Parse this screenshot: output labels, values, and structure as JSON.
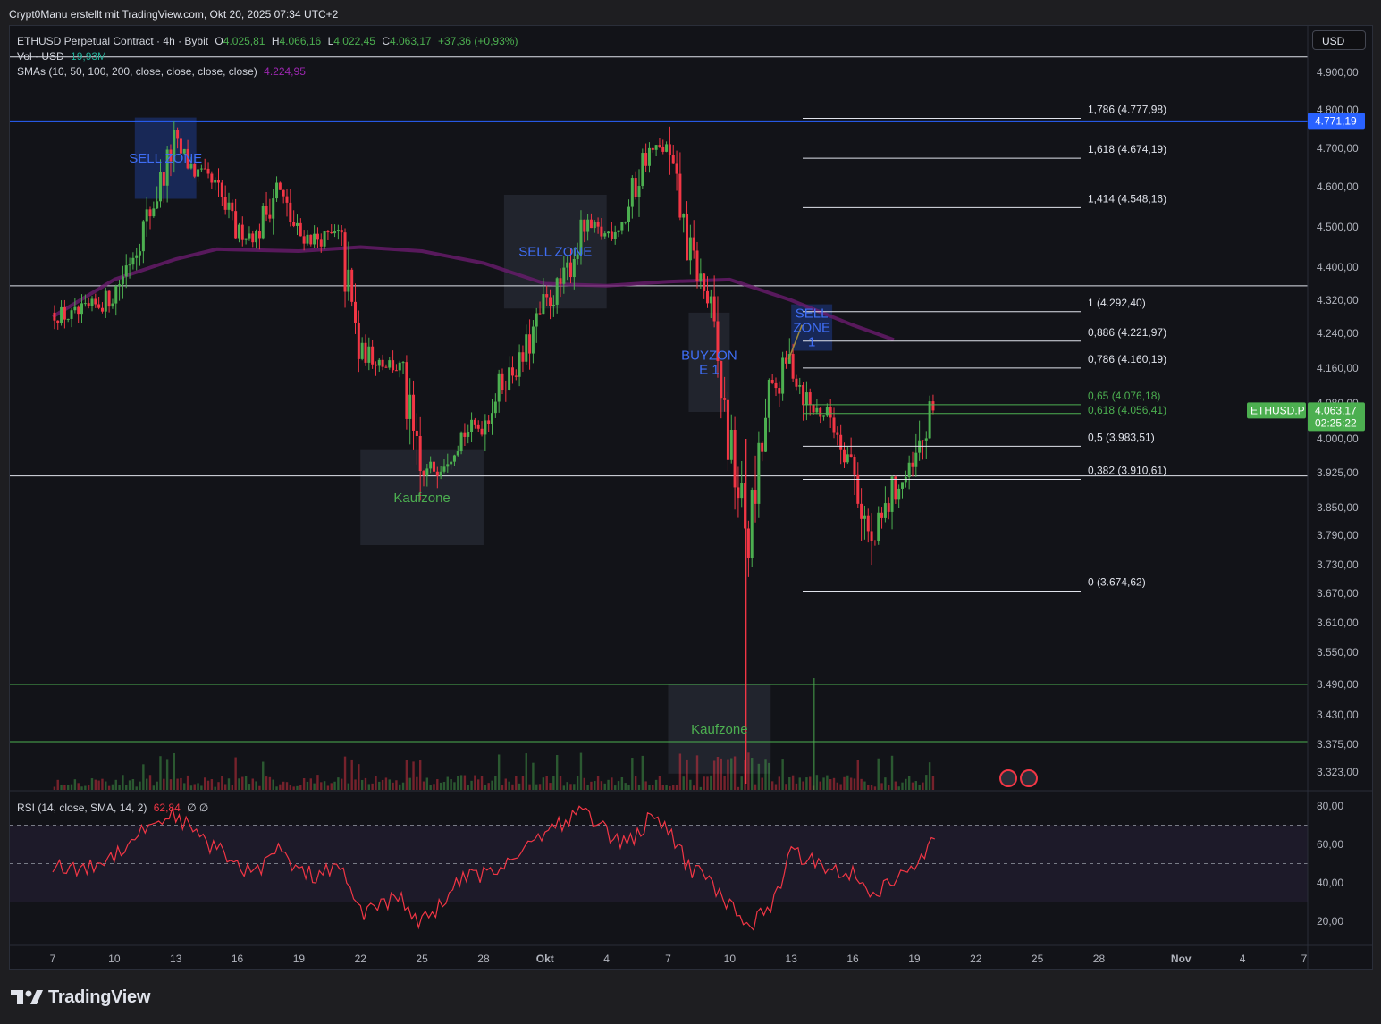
{
  "byline": "Crypt0Manu erstellt mit TradingView.com, Okt 20, 2025 07:34 UTC+2",
  "legend": {
    "symbol": "ETHUSD Perpetual Contract · 4h · Bybit",
    "open_label": "O",
    "open": "4.025,81",
    "high_label": "H",
    "high": "4.066,16",
    "low_label": "L",
    "low": "4.022,45",
    "close_label": "C",
    "close": "4.063,17",
    "change": "+37,36 (+0,93%)",
    "vol_label": "Vol · USD",
    "vol": "19,93M",
    "sma_label": "SMAs (10, 50, 100, 200, close, close, close, close)",
    "sma_value": "4.224,95",
    "rsi_label": "RSI (14, close, SMA, 14, 2)",
    "rsi_value": "62,84",
    "rsi_extra": "∅ ∅"
  },
  "currency_button": "USD",
  "brand": "TradingView",
  "colors": {
    "up": "#4caf50",
    "down": "#f23645",
    "sma": "#6a1b6e",
    "rsi": "#f23645",
    "blue_line": "#2962ff",
    "zone_blue": "#1e3a8a",
    "zone_gray": "#2a2e39"
  },
  "chart_data": [
    {
      "type": "candlestick",
      "symbol": "ETHUSD.P",
      "timeframe": "4h",
      "y_axis_labels": [
        "4.900,00",
        "4.800,00",
        "4.700,00",
        "4.600,00",
        "4.500,00",
        "4.400,00",
        "4.320,00",
        "4.240,00",
        "4.160,00",
        "4.080,00",
        "4.000,00",
        "3.925,00",
        "3.850,00",
        "3.790,00",
        "3.730,00",
        "3.670,00",
        "3.610,00",
        "3.550,00",
        "3.490,00",
        "3.430,00",
        "3.375,00",
        "3.323,00"
      ],
      "x_axis_labels": [
        "7",
        "10",
        "13",
        "16",
        "19",
        "22",
        "25",
        "28",
        "Okt",
        "4",
        "7",
        "10",
        "13",
        "16",
        "19",
        "22",
        "25",
        "28",
        "Nov",
        "4",
        "7"
      ],
      "price_path": [
        {
          "date": "Sep 7",
          "price": 4290
        },
        {
          "date": "Sep 8",
          "price": 4280
        },
        {
          "date": "Sep 9",
          "price": 4300
        },
        {
          "date": "Sep 10",
          "price": 4330
        },
        {
          "date": "Sep 11",
          "price": 4440
        },
        {
          "date": "Sep 12",
          "price": 4560
        },
        {
          "date": "Sep 13",
          "price": 4710
        },
        {
          "date": "Sep 14",
          "price": 4640
        },
        {
          "date": "Sep 15",
          "price": 4600
        },
        {
          "date": "Sep 16",
          "price": 4490
        },
        {
          "date": "Sep 17",
          "price": 4480
        },
        {
          "date": "Sep 18",
          "price": 4600
        },
        {
          "date": "Sep 19",
          "price": 4480
        },
        {
          "date": "Sep 20",
          "price": 4470
        },
        {
          "date": "Sep 21",
          "price": 4480
        },
        {
          "date": "Sep 22",
          "price": 4200
        },
        {
          "date": "Sep 23",
          "price": 4180
        },
        {
          "date": "Sep 24",
          "price": 4160
        },
        {
          "date": "Sep 25",
          "price": 3910
        },
        {
          "date": "Sep 26",
          "price": 3950
        },
        {
          "date": "Sep 27",
          "price": 4010
        },
        {
          "date": "Sep 28",
          "price": 4030
        },
        {
          "date": "Sep 29",
          "price": 4130
        },
        {
          "date": "Sep 30",
          "price": 4180
        },
        {
          "date": "Okt 1",
          "price": 4300
        },
        {
          "date": "Okt 2",
          "price": 4370
        },
        {
          "date": "Okt 3",
          "price": 4500
        },
        {
          "date": "Okt 4",
          "price": 4480
        },
        {
          "date": "Okt 5",
          "price": 4520
        },
        {
          "date": "Okt 6",
          "price": 4690
        },
        {
          "date": "Okt 7",
          "price": 4700
        },
        {
          "date": "Okt 8",
          "price": 4460
        },
        {
          "date": "Okt 9",
          "price": 4320
        },
        {
          "date": "Okt 10",
          "price": 4000
        },
        {
          "date": "Okt 11",
          "price": 3780
        },
        {
          "date": "Okt 12",
          "price": 4080
        },
        {
          "date": "Okt 13",
          "price": 4180
        },
        {
          "date": "Okt 14",
          "price": 4070
        },
        {
          "date": "Okt 15",
          "price": 4050
        },
        {
          "date": "Okt 16",
          "price": 3950
        },
        {
          "date": "Okt 17",
          "price": 3760
        },
        {
          "date": "Okt 18",
          "price": 3880
        },
        {
          "date": "Okt 19",
          "price": 3930
        },
        {
          "date": "Okt 20",
          "price": 4063.17
        }
      ],
      "sma200_path": [
        {
          "date": "Sep 7",
          "price": 4280
        },
        {
          "date": "Sep 10",
          "price": 4370
        },
        {
          "date": "Sep 13",
          "price": 4420
        },
        {
          "date": "Sep 15",
          "price": 4445
        },
        {
          "date": "Sep 19",
          "price": 4440
        },
        {
          "date": "Sep 22",
          "price": 4450
        },
        {
          "date": "Sep 25",
          "price": 4440
        },
        {
          "date": "Sep 28",
          "price": 4410
        },
        {
          "date": "Okt 1",
          "price": 4360
        },
        {
          "date": "Okt 4",
          "price": 4355
        },
        {
          "date": "Okt 7",
          "price": 4365
        },
        {
          "date": "Okt 10",
          "price": 4370
        },
        {
          "date": "Okt 13",
          "price": 4320
        },
        {
          "date": "Okt 16",
          "price": 4260
        },
        {
          "date": "Okt 18",
          "price": 4224.95
        }
      ],
      "fib_levels": [
        {
          "label": "1,786 (4.777,98)",
          "price": 4777.98
        },
        {
          "label": "1,618 (4.674,19)",
          "price": 4674.19
        },
        {
          "label": "1,414 (4.548,16)",
          "price": 4548.16
        },
        {
          "label": "1 (4.292,40)",
          "price": 4292.4
        },
        {
          "label": "0,886 (4.221,97)",
          "price": 4221.97
        },
        {
          "label": "0,786 (4.160,19)",
          "price": 4160.19
        },
        {
          "label": "0,65 (4.076,18)",
          "price": 4076.18
        },
        {
          "label": "0,618 (4.056,41)",
          "price": 4056.41
        },
        {
          "label": "0,5 (3.983,51)",
          "price": 3983.51
        },
        {
          "label": "0,382 (3.910,61)",
          "price": 3910.61
        },
        {
          "label": "0 (3.674,62)",
          "price": 3674.62
        }
      ],
      "horizontal_lines": [
        4940,
        4771.19,
        4355,
        3918,
        3490,
        3380
      ],
      "price_tags": [
        {
          "label": "4.771,19",
          "price": 4771.19
        },
        {
          "label": "4.063,17",
          "sub": "02:25:22",
          "price": 4063.17,
          "symbol": "ETHUSD.P"
        }
      ],
      "zones": [
        {
          "label": "SELL ZONE",
          "color": "blue",
          "from": "Sep 11",
          "to": "Sep 14",
          "top": 4780,
          "bottom": 4570
        },
        {
          "label": "SELL ZONE",
          "color": "gray",
          "from": "Sep 29",
          "to": "Okt 4",
          "top": 4580,
          "bottom": 4300
        },
        {
          "label": "Kaufzone",
          "color": "gray",
          "from": "Sep 22",
          "to": "Sep 28",
          "top": 3975,
          "bottom": 3770
        },
        {
          "label": "BUYZON\nE 1",
          "color": "gray",
          "from": "Okt 8",
          "to": "Okt 10",
          "top": 4290,
          "bottom": 4060
        },
        {
          "label": "SELL\nZONE\n1",
          "color": "blue",
          "from": "Okt 13",
          "to": "Okt 15",
          "top": 4310,
          "bottom": 4200
        },
        {
          "label": "Kaufzone",
          "color": "gray",
          "from": "Okt 7",
          "to": "Okt 12",
          "top": 3490,
          "bottom": 3320
        }
      ]
    },
    {
      "type": "line",
      "name": "RSI (14, close, SMA, 14, 2)",
      "y_axis_labels": [
        "80,00",
        "60,00",
        "40,00",
        "20,00"
      ],
      "bands": [
        70,
        50,
        30
      ],
      "values": [
        {
          "date": "Sep 7",
          "value": 50
        },
        {
          "date": "Sep 8",
          "value": 46
        },
        {
          "date": "Sep 9",
          "value": 49
        },
        {
          "date": "Sep 10",
          "value": 55
        },
        {
          "date": "Sep 11",
          "value": 64
        },
        {
          "date": "Sep 12",
          "value": 72
        },
        {
          "date": "Sep 13",
          "value": 76
        },
        {
          "date": "Sep 14",
          "value": 64
        },
        {
          "date": "Sep 15",
          "value": 58
        },
        {
          "date": "Sep 16",
          "value": 48
        },
        {
          "date": "Sep 17",
          "value": 47
        },
        {
          "date": "Sep 18",
          "value": 57
        },
        {
          "date": "Sep 19",
          "value": 45
        },
        {
          "date": "Sep 20",
          "value": 44
        },
        {
          "date": "Sep 21",
          "value": 48
        },
        {
          "date": "Sep 22",
          "value": 24
        },
        {
          "date": "Sep 23",
          "value": 30
        },
        {
          "date": "Sep 24",
          "value": 31
        },
        {
          "date": "Sep 25",
          "value": 19
        },
        {
          "date": "Sep 26",
          "value": 30
        },
        {
          "date": "Sep 27",
          "value": 42
        },
        {
          "date": "Sep 28",
          "value": 44
        },
        {
          "date": "Sep 29",
          "value": 50
        },
        {
          "date": "Sep 30",
          "value": 58
        },
        {
          "date": "Okt 1",
          "value": 68
        },
        {
          "date": "Okt 2",
          "value": 72
        },
        {
          "date": "Okt 3",
          "value": 78
        },
        {
          "date": "Okt 4",
          "value": 66
        },
        {
          "date": "Okt 5",
          "value": 60
        },
        {
          "date": "Okt 6",
          "value": 72
        },
        {
          "date": "Okt 7",
          "value": 68
        },
        {
          "date": "Okt 8",
          "value": 48
        },
        {
          "date": "Okt 9",
          "value": 41
        },
        {
          "date": "Okt 10",
          "value": 28
        },
        {
          "date": "Okt 11",
          "value": 18
        },
        {
          "date": "Okt 12",
          "value": 28
        },
        {
          "date": "Okt 13",
          "value": 55
        },
        {
          "date": "Okt 14",
          "value": 52
        },
        {
          "date": "Okt 15",
          "value": 48
        },
        {
          "date": "Okt 16",
          "value": 45
        },
        {
          "date": "Okt 17",
          "value": 34
        },
        {
          "date": "Okt 18",
          "value": 42
        },
        {
          "date": "Okt 19",
          "value": 46
        },
        {
          "date": "Okt 20",
          "value": 62.84
        }
      ]
    }
  ]
}
